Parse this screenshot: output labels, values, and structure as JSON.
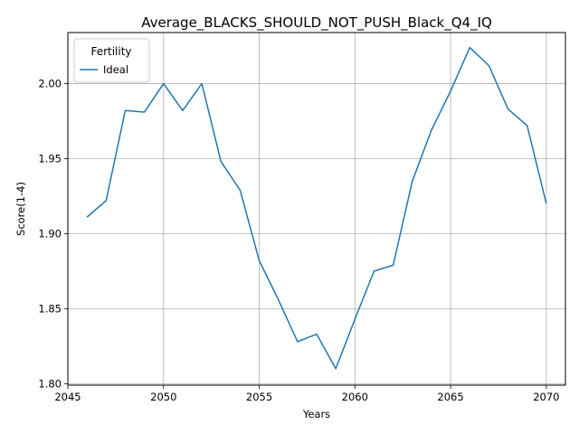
{
  "chart_data": {
    "type": "line",
    "title": "Average_BLACKS_SHOULD_NOT_PUSH_Black_Q4_IQ",
    "xlabel": "Years",
    "ylabel": "Score(1-4)",
    "xlim": [
      2045,
      2071
    ],
    "ylim": [
      1.799,
      2.034
    ],
    "xticks": [
      2045,
      2050,
      2055,
      2060,
      2065,
      2070
    ],
    "yticks": [
      1.8,
      1.85,
      1.9,
      1.95,
      2.0
    ],
    "xtick_labels": [
      "2045",
      "2050",
      "2055",
      "2060",
      "2065",
      "2070"
    ],
    "ytick_labels": [
      "1.80",
      "1.85",
      "1.90",
      "1.95",
      "2.00"
    ],
    "grid": true,
    "legend": {
      "title": "Fertility",
      "placement": "upper-left"
    },
    "series": [
      {
        "name": "Ideal",
        "color": "#1f77b4",
        "x": [
          2046,
          2047,
          2048,
          2049,
          2050,
          2051,
          2052,
          2053,
          2054,
          2055,
          2056,
          2057,
          2058,
          2059,
          2060,
          2061,
          2062,
          2063,
          2064,
          2065,
          2066,
          2067,
          2068,
          2069,
          2070
        ],
        "values": [
          1.911,
          1.922,
          1.982,
          1.981,
          2.0,
          1.982,
          2.0,
          1.948,
          1.929,
          1.882,
          1.856,
          1.828,
          1.833,
          1.81,
          1.843,
          1.875,
          1.879,
          1.935,
          1.969,
          1.995,
          2.024,
          2.012,
          1.983,
          1.972,
          1.92
        ]
      }
    ]
  }
}
